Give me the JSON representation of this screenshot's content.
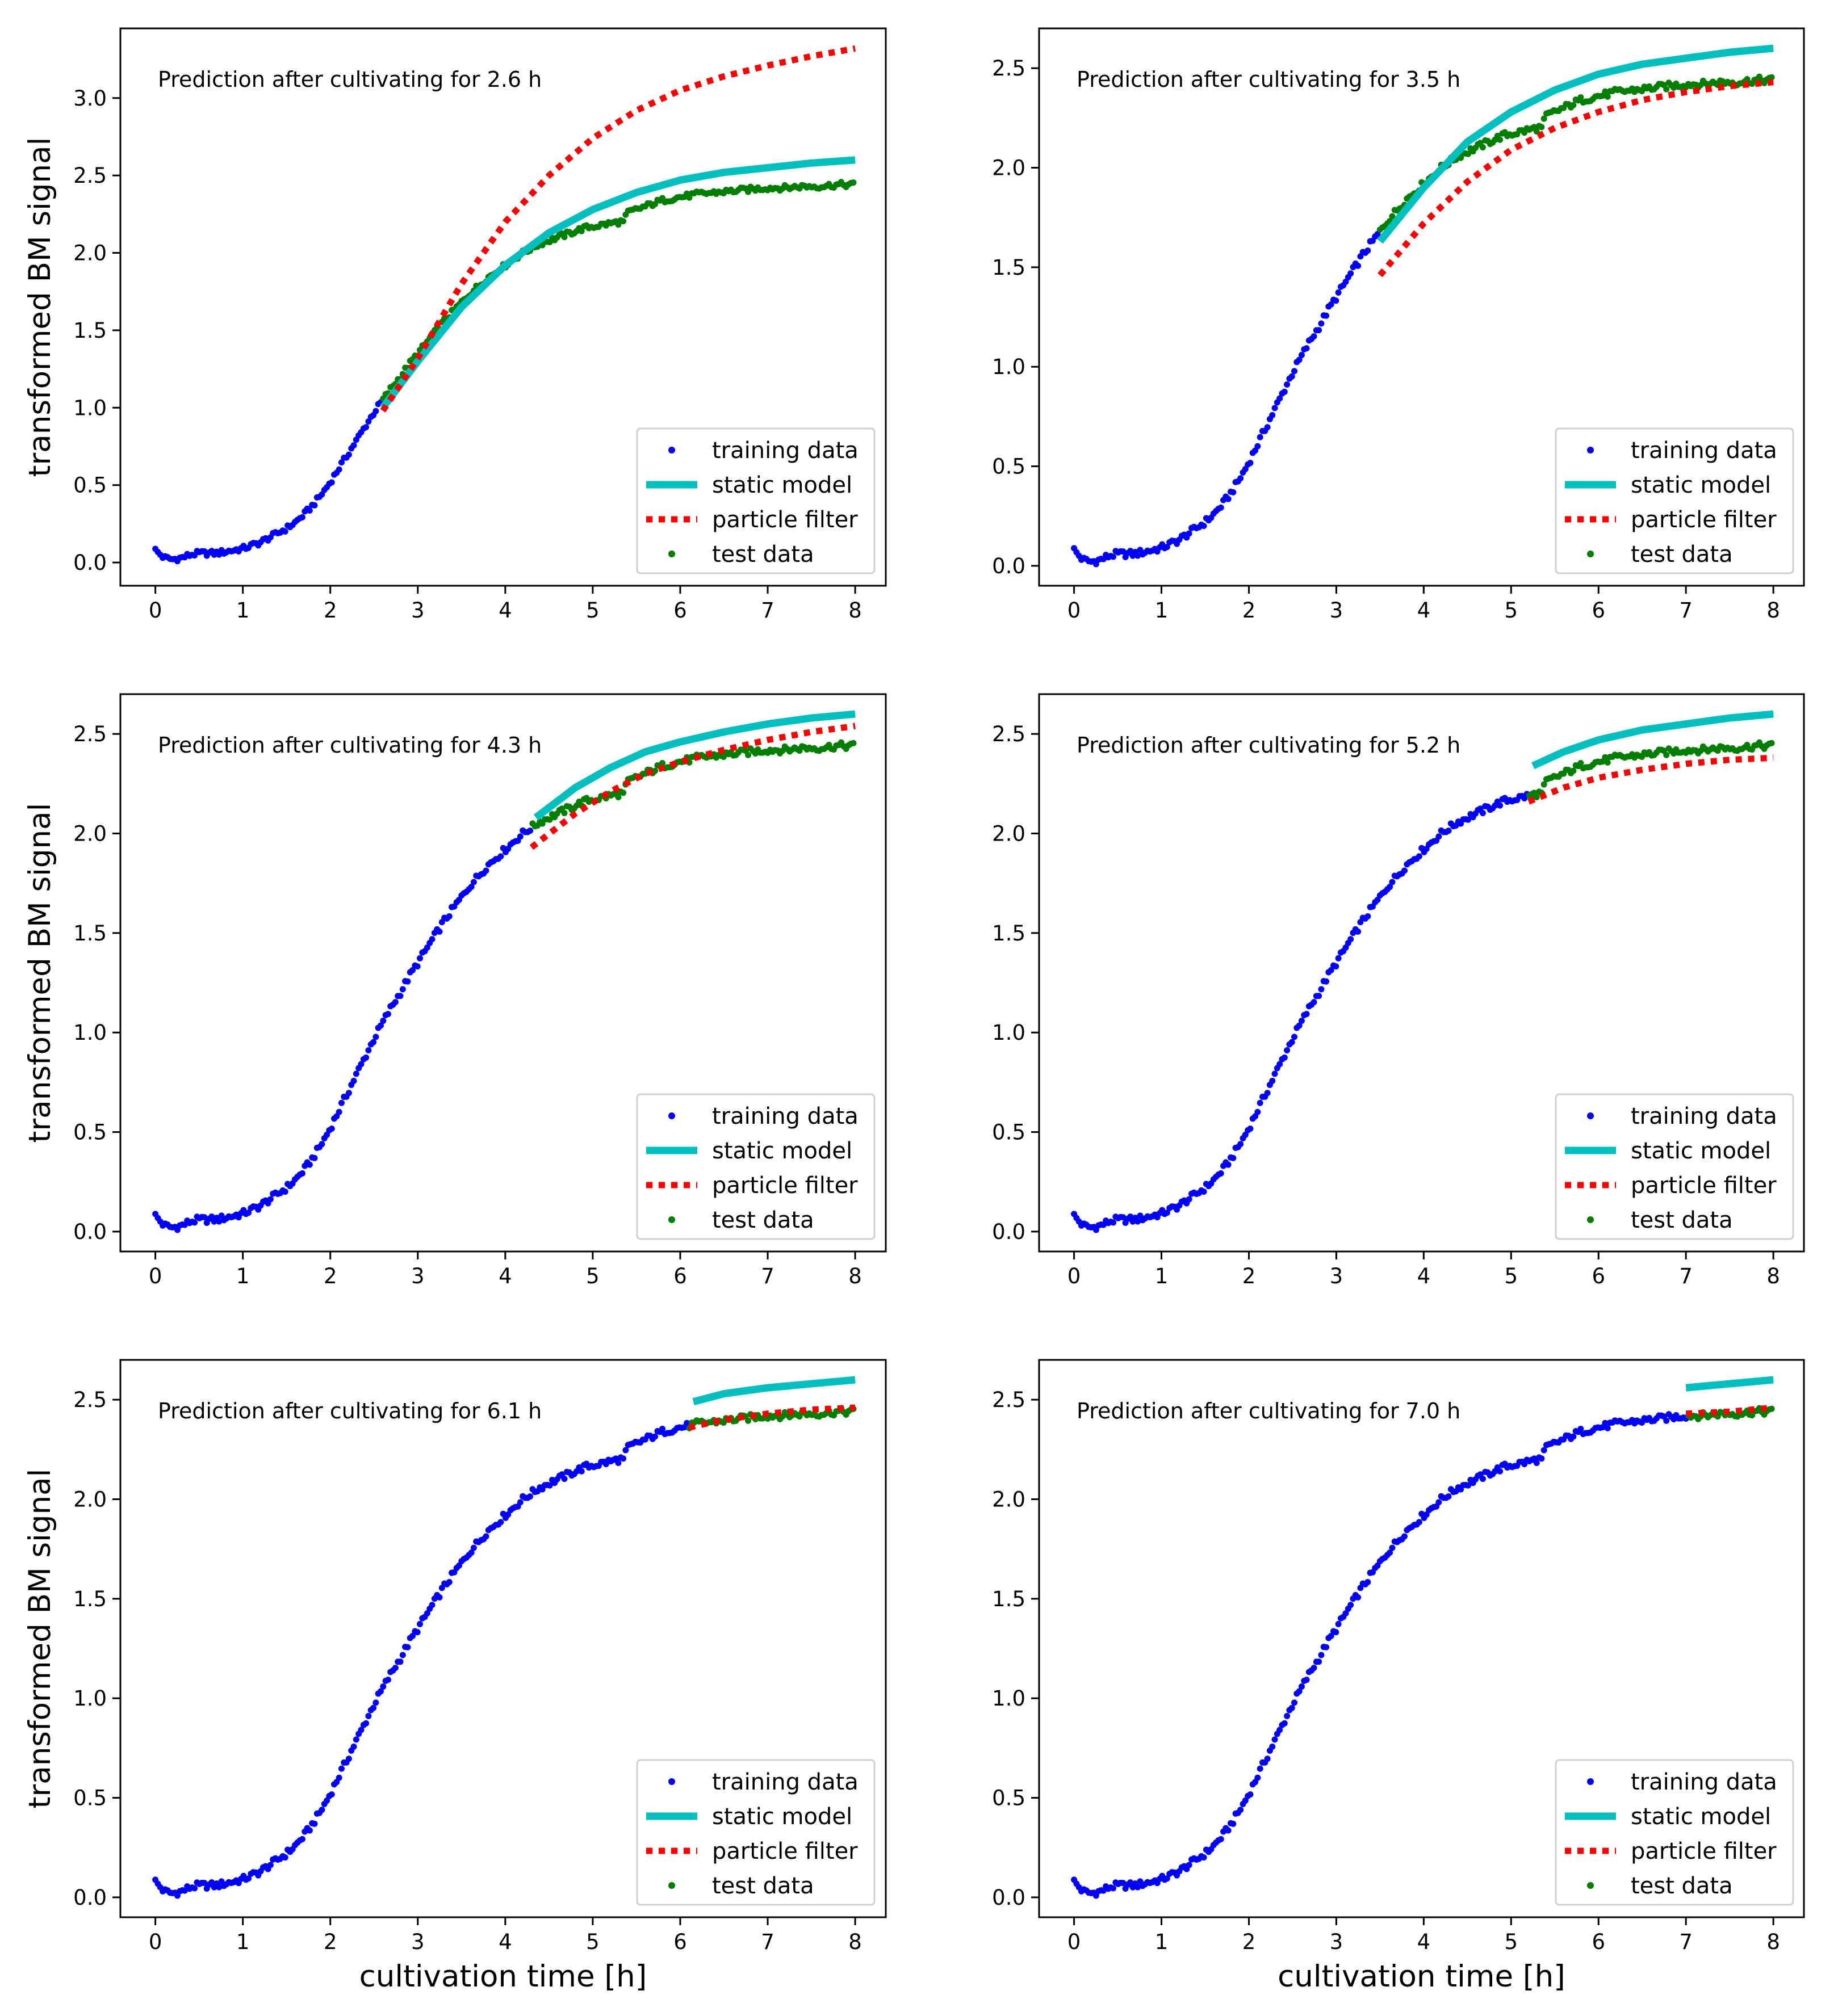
{
  "figure": {
    "ylabel": "transformed BM signal",
    "xlabel": "cultivation time [h]",
    "legend": [
      "training data",
      "static model",
      "particle filter",
      "test data"
    ]
  },
  "colors": {
    "training": "#0000ff",
    "static": "#00bfbf",
    "filter": "#ff0000",
    "test": "#007f00",
    "frame": "#000000"
  },
  "chart_data": [
    {
      "type": "line",
      "annotation": "Prediction after cultivating for 2.6 h",
      "cutoff": 2.6,
      "xlim": [
        -0.4,
        8.35
      ],
      "ylim": [
        -0.15,
        3.45
      ],
      "xticks": [
        "0",
        "1",
        "2",
        "3",
        "4",
        "5",
        "6",
        "7",
        "8"
      ],
      "yticks": [
        "0.0",
        "0.5",
        "1.0",
        "1.5",
        "2.0",
        "2.5",
        "3.0"
      ],
      "series": [
        {
          "name": "static model",
          "x": [
            2.6,
            3.0,
            3.5,
            4.0,
            4.5,
            5.0,
            5.5,
            6.0,
            6.5,
            7.0,
            7.5,
            8.0
          ],
          "values": [
            1.0,
            1.3,
            1.65,
            1.92,
            2.13,
            2.28,
            2.39,
            2.47,
            2.52,
            2.55,
            2.58,
            2.6
          ]
        },
        {
          "name": "particle filter",
          "x": [
            2.6,
            3.0,
            3.5,
            4.0,
            4.5,
            5.0,
            5.5,
            6.0,
            6.5,
            7.0,
            7.5,
            8.0
          ],
          "values": [
            0.98,
            1.32,
            1.8,
            2.2,
            2.5,
            2.74,
            2.92,
            3.05,
            3.14,
            3.21,
            3.27,
            3.32
          ]
        }
      ]
    },
    {
      "type": "line",
      "annotation": "Prediction after cultivating for 3.5 h",
      "cutoff": 3.5,
      "xlim": [
        -0.4,
        8.35
      ],
      "ylim": [
        -0.1,
        2.7
      ],
      "xticks": [
        "0",
        "1",
        "2",
        "3",
        "4",
        "5",
        "6",
        "7",
        "8"
      ],
      "yticks": [
        "0.0",
        "0.5",
        "1.0",
        "1.5",
        "2.0",
        "2.5"
      ],
      "series": [
        {
          "name": "static model",
          "x": [
            3.5,
            4.0,
            4.5,
            5.0,
            5.5,
            6.0,
            6.5,
            7.0,
            7.5,
            8.0
          ],
          "values": [
            1.63,
            1.9,
            2.13,
            2.28,
            2.39,
            2.47,
            2.52,
            2.55,
            2.58,
            2.6
          ]
        },
        {
          "name": "particle filter",
          "x": [
            3.5,
            4.0,
            4.5,
            5.0,
            5.5,
            6.0,
            6.5,
            7.0,
            7.5,
            8.0
          ],
          "values": [
            1.46,
            1.72,
            1.93,
            2.09,
            2.2,
            2.28,
            2.34,
            2.38,
            2.41,
            2.43
          ]
        }
      ]
    },
    {
      "type": "line",
      "annotation": "Prediction after cultivating for 4.3 h",
      "cutoff": 4.3,
      "xlim": [
        -0.4,
        8.35
      ],
      "ylim": [
        -0.1,
        2.7
      ],
      "xticks": [
        "0",
        "1",
        "2",
        "3",
        "4",
        "5",
        "6",
        "7",
        "8"
      ],
      "yticks": [
        "0.0",
        "0.5",
        "1.0",
        "1.5",
        "2.0",
        "2.5"
      ],
      "series": [
        {
          "name": "static model",
          "x": [
            4.35,
            4.8,
            5.2,
            5.6,
            6.0,
            6.5,
            7.0,
            7.5,
            8.0
          ],
          "values": [
            2.08,
            2.23,
            2.33,
            2.41,
            2.46,
            2.51,
            2.55,
            2.58,
            2.6
          ]
        },
        {
          "name": "particle filter",
          "x": [
            4.3,
            4.8,
            5.2,
            5.6,
            6.0,
            6.5,
            7.0,
            7.5,
            8.0
          ],
          "values": [
            1.93,
            2.1,
            2.21,
            2.3,
            2.36,
            2.42,
            2.47,
            2.51,
            2.54
          ]
        }
      ]
    },
    {
      "type": "line",
      "annotation": "Prediction after cultivating for 5.2 h",
      "cutoff": 5.2,
      "xlim": [
        -0.4,
        8.35
      ],
      "ylim": [
        -0.1,
        2.7
      ],
      "xticks": [
        "0",
        "1",
        "2",
        "3",
        "4",
        "5",
        "6",
        "7",
        "8"
      ],
      "yticks": [
        "0.0",
        "0.5",
        "1.0",
        "1.5",
        "2.0",
        "2.5"
      ],
      "series": [
        {
          "name": "static model",
          "x": [
            5.25,
            5.6,
            6.0,
            6.5,
            7.0,
            7.5,
            8.0
          ],
          "values": [
            2.34,
            2.41,
            2.47,
            2.52,
            2.55,
            2.58,
            2.6
          ]
        },
        {
          "name": "particle filter",
          "x": [
            5.2,
            5.6,
            6.0,
            6.5,
            7.0,
            7.5,
            8.0
          ],
          "values": [
            2.16,
            2.23,
            2.28,
            2.32,
            2.35,
            2.37,
            2.38
          ]
        }
      ]
    },
    {
      "type": "line",
      "annotation": "Prediction after cultivating for 6.1 h",
      "cutoff": 6.1,
      "xlim": [
        -0.4,
        8.35
      ],
      "ylim": [
        -0.1,
        2.7
      ],
      "xticks": [
        "0",
        "1",
        "2",
        "3",
        "4",
        "5",
        "6",
        "7",
        "8"
      ],
      "yticks": [
        "0.0",
        "0.5",
        "1.0",
        "1.5",
        "2.0",
        "2.5"
      ],
      "series": [
        {
          "name": "static model",
          "x": [
            6.15,
            6.5,
            7.0,
            7.5,
            8.0
          ],
          "values": [
            2.49,
            2.53,
            2.56,
            2.58,
            2.6
          ]
        },
        {
          "name": "particle filter",
          "x": [
            6.1,
            6.5,
            7.0,
            7.5,
            8.0
          ],
          "values": [
            2.36,
            2.4,
            2.43,
            2.45,
            2.46
          ]
        }
      ]
    },
    {
      "type": "line",
      "annotation": "Prediction after cultivating for 7.0 h",
      "cutoff": 7.0,
      "xlim": [
        -0.4,
        8.35
      ],
      "ylim": [
        -0.1,
        2.7
      ],
      "xticks": [
        "0",
        "1",
        "2",
        "3",
        "4",
        "5",
        "6",
        "7",
        "8"
      ],
      "yticks": [
        "0.0",
        "0.5",
        "1.0",
        "1.5",
        "2.0",
        "2.5"
      ],
      "series": [
        {
          "name": "static model",
          "x": [
            7.0,
            7.5,
            8.0
          ],
          "values": [
            2.56,
            2.58,
            2.6
          ]
        },
        {
          "name": "particle filter",
          "x": [
            7.0,
            7.5,
            8.0
          ],
          "values": [
            2.43,
            2.44,
            2.46
          ]
        }
      ]
    }
  ],
  "signal_curve": {
    "name": "training / test data",
    "x": [
      0,
      0.1,
      0.2,
      0.3,
      0.4,
      0.5,
      0.6,
      0.7,
      0.8,
      0.9,
      1.0,
      1.1,
      1.2,
      1.3,
      1.4,
      1.5,
      1.6,
      1.7,
      1.8,
      1.9,
      2.0,
      2.1,
      2.2,
      2.3,
      2.4,
      2.5,
      2.6,
      2.7,
      2.8,
      2.9,
      3.0,
      3.1,
      3.2,
      3.3,
      3.4,
      3.5,
      3.6,
      3.7,
      3.8,
      3.9,
      4.0,
      4.1,
      4.2,
      4.3,
      4.4,
      4.5,
      4.6,
      4.7,
      4.8,
      4.9,
      5.0,
      5.1,
      5.2,
      5.3,
      5.35,
      5.4,
      5.5,
      5.6,
      5.7,
      5.8,
      5.9,
      6.0,
      6.2,
      6.4,
      6.6,
      6.8,
      7.0,
      7.2,
      7.4,
      7.6,
      7.8,
      8.0
    ],
    "values": [
      0.08,
      0.03,
      0.02,
      0.03,
      0.05,
      0.06,
      0.06,
      0.06,
      0.07,
      0.08,
      0.09,
      0.11,
      0.13,
      0.16,
      0.19,
      0.22,
      0.26,
      0.31,
      0.37,
      0.44,
      0.52,
      0.61,
      0.7,
      0.79,
      0.88,
      0.97,
      1.05,
      1.13,
      1.2,
      1.28,
      1.35,
      1.42,
      1.49,
      1.56,
      1.62,
      1.68,
      1.74,
      1.79,
      1.84,
      1.88,
      1.92,
      1.96,
      2.0,
      2.03,
      2.06,
      2.08,
      2.1,
      2.12,
      2.14,
      2.16,
      2.17,
      2.18,
      2.19,
      2.2,
      2.2,
      2.26,
      2.28,
      2.3,
      2.32,
      2.34,
      2.35,
      2.36,
      2.38,
      2.39,
      2.4,
      2.41,
      2.42,
      2.42,
      2.43,
      2.43,
      2.44,
      2.44
    ]
  }
}
